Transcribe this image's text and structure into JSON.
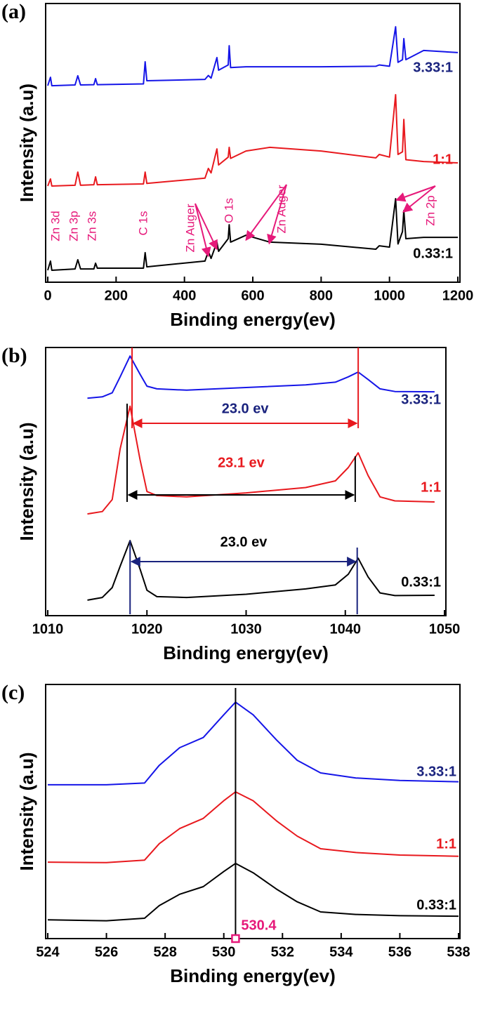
{
  "chart_data": [
    {
      "type": "line",
      "panel_label": "(a)",
      "x_label": "Binding energy(ev)",
      "y_label": "Intensity (a.u)",
      "xlim": [
        0,
        1200
      ],
      "xticks": [
        0,
        200,
        400,
        600,
        800,
        1000,
        1200
      ],
      "ylim": [
        0,
        100
      ],
      "x": [
        0,
        8,
        12,
        80,
        88,
        96,
        135,
        140,
        145,
        280,
        285,
        290,
        460,
        470,
        478,
        495,
        500,
        528,
        531,
        535,
        580,
        650,
        800,
        960,
        970,
        1000,
        1018,
        1025,
        1038,
        1042,
        1048,
        1100,
        1200
      ],
      "series": [
        {
          "name": "3.33:1",
          "color": "#1515e8",
          "label_color": "#1a237e",
          "values": [
            74.1,
            77.3,
            74.1,
            74.4,
            77.9,
            74.4,
            74.5,
            76.8,
            74.5,
            74.8,
            83.2,
            76,
            76.5,
            78,
            77,
            84.8,
            80,
            82,
            89.3,
            81,
            81.3,
            81.3,
            81.3,
            81.5,
            82,
            81.5,
            96.5,
            83,
            84,
            92,
            84,
            87.5,
            86.7
          ]
        },
        {
          "name": "1:1",
          "color": "#e8191e",
          "label_color": "#e8191e",
          "values": [
            36,
            38.7,
            36,
            36.3,
            41.3,
            36.3,
            36.5,
            39.5,
            36.5,
            36.8,
            41.3,
            37,
            39,
            42.7,
            41,
            50.1,
            44,
            47,
            50.7,
            46.5,
            49.3,
            50.7,
            49.3,
            46.7,
            48,
            47,
            70.7,
            48,
            49,
            61.3,
            46,
            45.3,
            44.8
          ]
        },
        {
          "name": "0.33:1",
          "color": "#000000",
          "label_color": "#000000",
          "values": [
            4,
            7.5,
            4,
            4.5,
            8,
            4.5,
            4.5,
            6.7,
            4.8,
            4.8,
            10.7,
            5.3,
            7.5,
            11.2,
            8.5,
            14.7,
            11.2,
            16,
            21.3,
            14.7,
            17.3,
            14.7,
            13.9,
            12,
            13.3,
            12.8,
            31.2,
            14,
            18.7,
            26.7,
            16,
            16.5,
            16.5
          ]
        }
      ],
      "annotations": [
        {
          "text": "Zn 3d"
        },
        {
          "text": "Zn 3p"
        },
        {
          "text": "Zn 3s"
        },
        {
          "text": "C 1s"
        },
        {
          "text": "Zn Auger"
        },
        {
          "text": "O 1s"
        },
        {
          "text": "Zn Auger"
        },
        {
          "text": "Zn 2p"
        }
      ]
    },
    {
      "type": "line",
      "panel_label": "(b)",
      "x_label": "Binding energy(ev)",
      "y_label": "Intensity (a.u)",
      "xlim": [
        1010,
        1050
      ],
      "xticks": [
        1010,
        1020,
        1030,
        1040,
        1050
      ],
      "ylim": [
        0,
        100
      ],
      "x": [
        1014,
        1015.5,
        1016.5,
        1017.3,
        1018.3,
        1019.3,
        1020,
        1021,
        1024,
        1030,
        1036,
        1039,
        1040.3,
        1041.3,
        1042.3,
        1043.5,
        1045,
        1049
      ],
      "series": [
        {
          "name": "3.33:1",
          "color": "#1515e8",
          "label_color": "#1a237e",
          "values": [
            81,
            81.5,
            83,
            89,
            96.8,
            90,
            85.5,
            84.5,
            84,
            85,
            86,
            87,
            89,
            90.8,
            88,
            84.5,
            83.5,
            83.4
          ]
        },
        {
          "name": "1:1",
          "color": "#e8191e",
          "label_color": "#e8191e",
          "values": [
            37.6,
            38.5,
            43,
            62,
            78,
            58,
            46,
            44.5,
            44,
            45.5,
            47.5,
            50,
            55,
            60.5,
            52,
            44,
            42.5,
            42.1
          ]
        },
        {
          "name": "0.33:1",
          "color": "#000000",
          "label_color": "#000000",
          "values": [
            5.3,
            6.3,
            10,
            18,
            27.6,
            17,
            9,
            6.6,
            6.3,
            7.5,
            9.5,
            11,
            15,
            21,
            14,
            8,
            7,
            7.1
          ]
        }
      ],
      "annotations": [
        {
          "text": "23.0 ev",
          "x": [
            1018.5,
            1041.3
          ],
          "text_color": "#1a237e",
          "line_color": "#e8191e"
        },
        {
          "text": "23.1 ev",
          "x": [
            1018,
            1041
          ],
          "text_color": "#e8191e",
          "line_color": "#000000"
        },
        {
          "text": "23.0 ev",
          "x": [
            1018.3,
            1041.2
          ],
          "text_color": "#000000",
          "line_color": "#1a237e"
        }
      ]
    },
    {
      "type": "line",
      "panel_label": "(c)",
      "x_label": "Binding energy(ev)",
      "y_label": "Intensity (a.u)",
      "xlim": [
        524,
        538
      ],
      "xticks": [
        524,
        526,
        528,
        530,
        532,
        534,
        536,
        538
      ],
      "ylim": [
        0,
        100
      ],
      "x": [
        524,
        526,
        527.3,
        527.8,
        528.5,
        529.3,
        530,
        530.4,
        531,
        531.8,
        532.5,
        533.3,
        534.5,
        536,
        538
      ],
      "series": [
        {
          "name": "3.33:1",
          "color": "#1515e8",
          "label_color": "#1a237e",
          "values": [
            60.3,
            60.3,
            61,
            68,
            75,
            79,
            88,
            93,
            88,
            78,
            70,
            65,
            63,
            62,
            61.5
          ]
        },
        {
          "name": "1:1",
          "color": "#e8191e",
          "label_color": "#e8191e",
          "values": [
            29.7,
            29.5,
            30.5,
            37,
            43,
            47,
            54,
            57.5,
            54,
            46,
            40,
            35,
            33.5,
            32.5,
            32
          ]
        },
        {
          "name": "0.33:1",
          "color": "#000000",
          "label_color": "#000000",
          "values": [
            6.9,
            6.5,
            7.5,
            12.5,
            17,
            20,
            26,
            29.2,
            25.5,
            19,
            14,
            10,
            9,
            8.5,
            8.3
          ]
        }
      ],
      "annotations": [
        {
          "value": 530.4,
          "label": "530.4"
        }
      ]
    }
  ]
}
